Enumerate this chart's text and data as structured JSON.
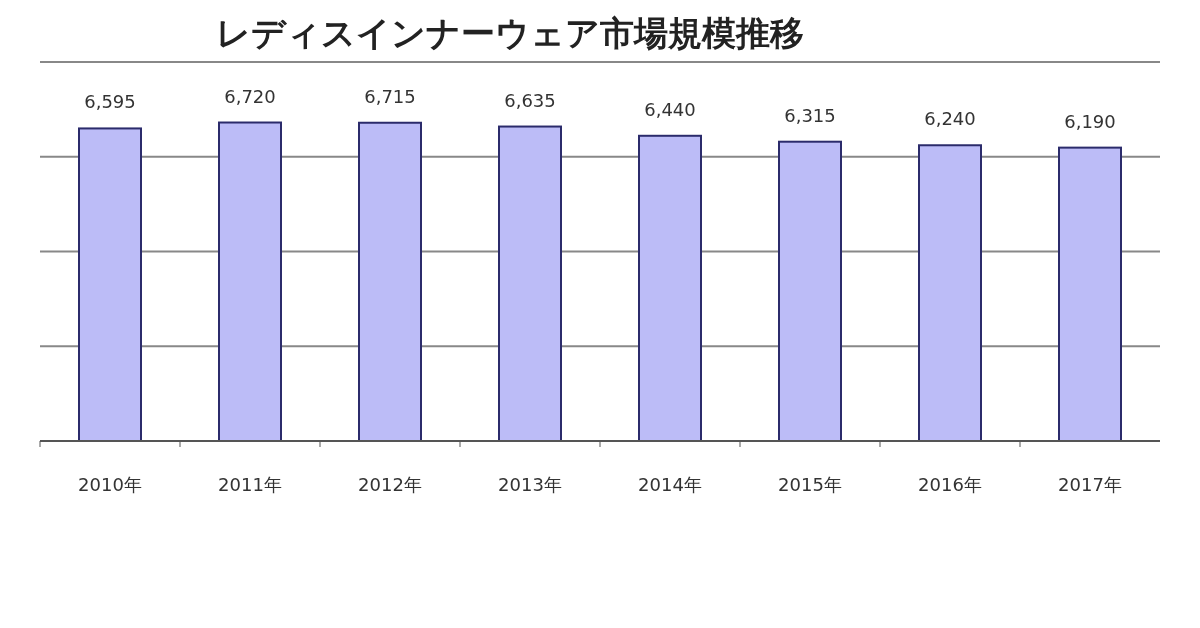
{
  "chart_data": {
    "type": "bar",
    "title": "レディスインナーウェア市場規模推移",
    "categories": [
      "2010年",
      "2011年",
      "2012年",
      "2013年",
      "2014年",
      "2015年",
      "2016年",
      "2017年"
    ],
    "values": [
      6595,
      6720,
      6715,
      6635,
      6440,
      6315,
      6240,
      6190
    ],
    "value_labels": [
      "6,595",
      "6,720",
      "6,715",
      "6,635",
      "6,440",
      "6,315",
      "6,240",
      "6,190"
    ],
    "color": "#bcbcf7",
    "tick_labels": "x",
    "grid": "y"
  }
}
